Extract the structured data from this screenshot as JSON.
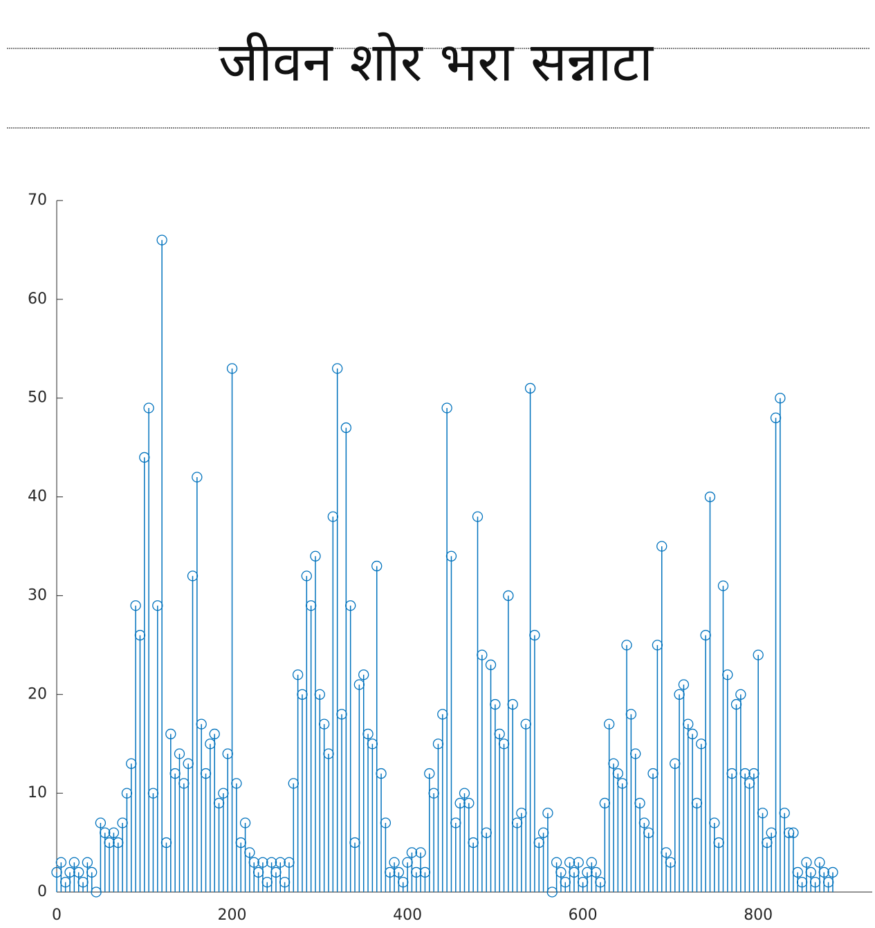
{
  "handwriting": {
    "text": "जीवन शोर भरा सन्नाटा"
  },
  "chart_data": {
    "type": "stem",
    "color": "#0072bd",
    "xlim": [
      0,
      930
    ],
    "ylim": [
      0,
      70
    ],
    "xticks": [
      0,
      200,
      400,
      600,
      800
    ],
    "yticks": [
      0,
      10,
      20,
      30,
      40,
      50,
      60,
      70
    ],
    "x": [
      0,
      5,
      10,
      15,
      20,
      25,
      30,
      35,
      40,
      45,
      50,
      55,
      60,
      65,
      70,
      75,
      80,
      85,
      90,
      95,
      100,
      105,
      110,
      115,
      120,
      125,
      130,
      135,
      140,
      145,
      150,
      155,
      160,
      165,
      170,
      175,
      180,
      185,
      190,
      195,
      200,
      205,
      210,
      215,
      220,
      225,
      230,
      235,
      240,
      245,
      250,
      255,
      260,
      265,
      270,
      275,
      280,
      285,
      290,
      295,
      300,
      305,
      310,
      315,
      320,
      325,
      330,
      335,
      340,
      345,
      350,
      355,
      360,
      365,
      370,
      375,
      380,
      385,
      390,
      395,
      400,
      405,
      410,
      415,
      420,
      425,
      430,
      435,
      440,
      445,
      450,
      455,
      460,
      465,
      470,
      475,
      480,
      485,
      490,
      495,
      500,
      505,
      510,
      515,
      520,
      525,
      530,
      535,
      540,
      545,
      550,
      555,
      560,
      565,
      570,
      575,
      580,
      585,
      590,
      595,
      600,
      605,
      610,
      615,
      620,
      625,
      630,
      635,
      640,
      645,
      650,
      655,
      660,
      665,
      670,
      675,
      680,
      685,
      690,
      695,
      700,
      705,
      710,
      715,
      720,
      725,
      730,
      735,
      740,
      745,
      750,
      755,
      760,
      765,
      770,
      775,
      780,
      785,
      790,
      795,
      800,
      805,
      810,
      815,
      820,
      825,
      830,
      835,
      840,
      845,
      850,
      855,
      860,
      865,
      870,
      875,
      880,
      885
    ],
    "values": [
      2,
      3,
      1,
      2,
      3,
      2,
      1,
      3,
      2,
      0,
      7,
      6,
      5,
      6,
      5,
      7,
      10,
      13,
      29,
      26,
      44,
      49,
      10,
      29,
      66,
      5,
      16,
      12,
      14,
      11,
      13,
      32,
      42,
      17,
      12,
      15,
      16,
      9,
      10,
      14,
      53,
      11,
      5,
      7,
      4,
      3,
      2,
      3,
      1,
      3,
      2,
      3,
      1,
      3,
      11,
      22,
      20,
      32,
      29,
      34,
      20,
      17,
      14,
      38,
      53,
      18,
      47,
      29,
      5,
      21,
      22,
      16,
      15,
      33,
      12,
      7,
      2,
      3,
      2,
      1,
      3,
      4,
      2,
      4,
      2,
      12,
      10,
      15,
      18,
      49,
      34,
      7,
      9,
      10,
      9,
      5,
      38,
      24,
      6,
      23,
      19,
      16,
      15,
      30,
      19,
      7,
      8,
      17,
      51,
      26,
      5,
      6,
      8,
      0,
      3,
      2,
      1,
      3,
      2,
      3,
      1,
      2,
      3,
      2,
      1,
      9,
      17,
      13,
      12,
      11,
      25,
      18,
      14,
      9,
      7,
      6,
      12,
      25,
      35,
      4,
      3,
      13,
      20,
      21,
      17,
      16,
      9,
      15,
      26,
      40,
      7,
      5,
      31,
      22,
      12,
      19,
      20,
      12,
      11,
      12,
      24,
      8,
      5,
      6,
      48,
      50,
      8,
      6,
      6,
      2,
      1,
      3,
      2,
      1,
      3,
      2,
      1,
      2
    ]
  }
}
